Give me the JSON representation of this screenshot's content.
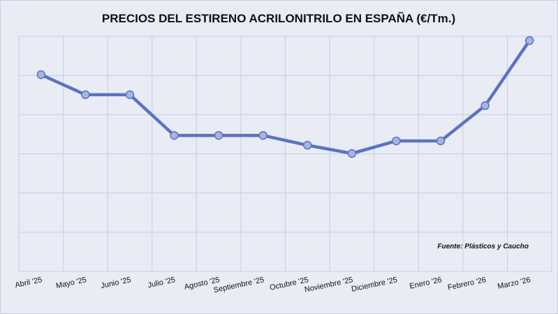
{
  "chart_data": {
    "type": "line",
    "title": "PRECIOS DEL ESTIRENO ACRILONITRILO EN ESPAÑA (€/Tm.)",
    "source_note": "Fuente: Plásticos y Caucho",
    "categories": [
      "Abril '25",
      "Mayo '25",
      "Junio '25",
      "Julio '25",
      "Agosto '25",
      "Septiembre '25",
      "Octubre '25",
      "Noviembre '25",
      "Diciembre '25",
      "Enero '26",
      "Febrero '26",
      "Marzo '26"
    ],
    "series": [
      {
        "values": [
          5.02,
          4.51,
          4.51,
          3.47,
          3.47,
          3.47,
          3.22,
          3.01,
          3.33,
          3.33,
          4.23,
          5.89
        ]
      }
    ],
    "ylim": [
      0,
      6
    ],
    "y_ticks_shown": false,
    "grid": true,
    "colors": {
      "line": "#5b72c4",
      "marker": "#a7b4e0",
      "grid": "#c3cdea",
      "background": "#e9ecf5"
    }
  }
}
